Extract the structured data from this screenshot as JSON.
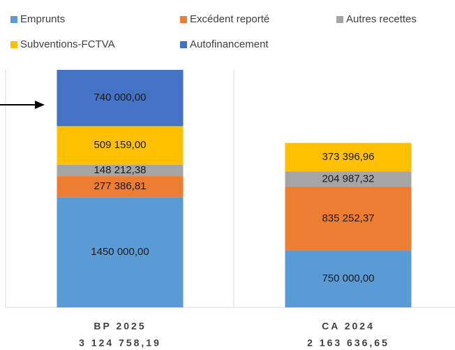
{
  "chart_data": {
    "type": "stacked_bar",
    "categories": [
      "BP 2025",
      "CA 2024"
    ],
    "totals": [
      {
        "value": 3124758.19,
        "label": "3 124 758,19"
      },
      {
        "value": 2163636.65,
        "label": "2 163 636,65"
      }
    ],
    "series": [
      {
        "name": "Emprunts",
        "color": "#5b9bd5",
        "values": [
          1450000,
          750000
        ],
        "value_labels": [
          "1450 000,00",
          "750 000,00"
        ]
      },
      {
        "name": "Excédent reporté",
        "color": "#ed7d31",
        "values": [
          277386.81,
          835252.37
        ],
        "value_labels": [
          "277 386,81",
          "835 252,37"
        ]
      },
      {
        "name": "Autres recettes",
        "color": "#a5a5a5",
        "values": [
          148212.38,
          204987.32
        ],
        "value_labels": [
          "148 212,38",
          "204 987,32"
        ]
      },
      {
        "name": "Subventions-FCTVA",
        "color": "#ffc000",
        "values": [
          509159,
          373396.96
        ],
        "value_labels": [
          "509 159,00",
          "373 396,96"
        ]
      },
      {
        "name": "Autofinancement",
        "color": "#4472c4",
        "values": [
          740000,
          null
        ],
        "value_labels": [
          "740 000,00",
          null
        ]
      }
    ]
  }
}
